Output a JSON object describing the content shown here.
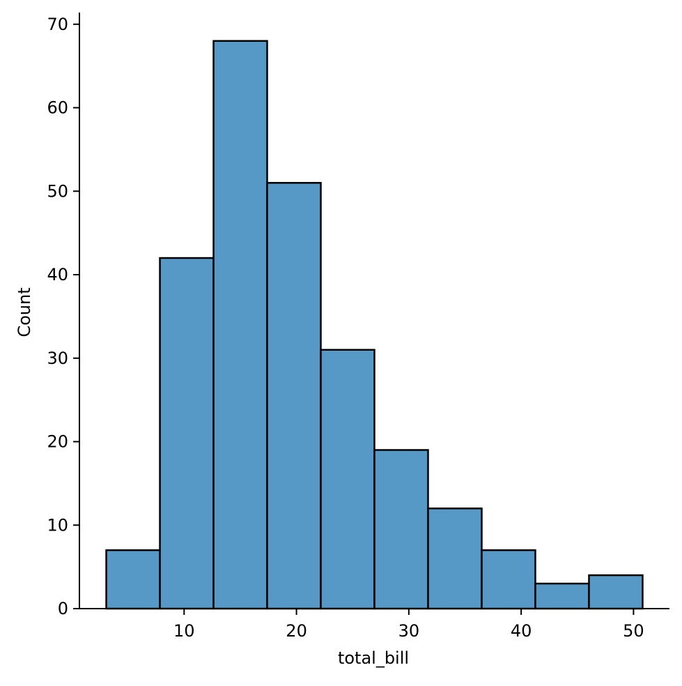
{
  "chart_data": {
    "type": "bar",
    "subtype": "histogram",
    "title": "",
    "xlabel": "total_bill",
    "ylabel": "Count",
    "bins": [
      {
        "start": 3.07,
        "end": 7.844,
        "count": 7
      },
      {
        "start": 7.844,
        "end": 12.618,
        "count": 42
      },
      {
        "start": 12.618,
        "end": 17.392,
        "count": 68
      },
      {
        "start": 17.392,
        "end": 22.166,
        "count": 51
      },
      {
        "start": 22.166,
        "end": 26.94,
        "count": 31
      },
      {
        "start": 26.94,
        "end": 31.714,
        "count": 19
      },
      {
        "start": 31.714,
        "end": 36.488,
        "count": 12
      },
      {
        "start": 36.488,
        "end": 41.262,
        "count": 7
      },
      {
        "start": 41.262,
        "end": 46.036,
        "count": 3
      },
      {
        "start": 46.036,
        "end": 50.81,
        "count": 4
      }
    ],
    "xlim": [
      0.68,
      53.2
    ],
    "ylim": [
      0,
      71.4
    ],
    "xticks": [
      10,
      20,
      30,
      40,
      50
    ],
    "yticks": [
      0,
      10,
      20,
      30,
      40,
      50,
      60,
      70
    ],
    "bar_color": "#5799c6",
    "edge_color": "#000000",
    "grid": false,
    "spines": "left-bottom"
  }
}
